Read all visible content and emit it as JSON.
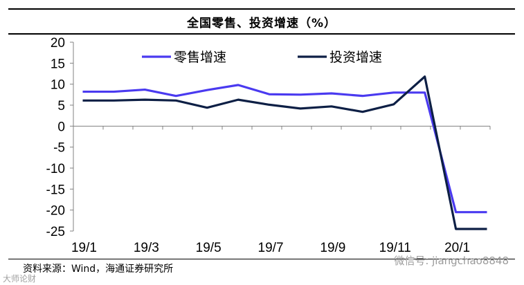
{
  "title": "全国零售、投资增速（%）",
  "source": "资料来源：Wind，海通证券研究所",
  "watermark": "微信号: jiangchao8848",
  "watermark_left": "大师论财",
  "colors": {
    "retail": "#4a3af0",
    "investment": "#0d1f45",
    "axis": "#808080"
  },
  "chart_data": {
    "type": "line",
    "title": "全国零售、投资增速（%）",
    "xlabel": "",
    "ylabel": "",
    "ylim": [
      -25,
      20
    ],
    "yticks": [
      20,
      15,
      10,
      5,
      0,
      -5,
      -10,
      -15,
      -20,
      -25
    ],
    "x": [
      "19/1",
      "19/2",
      "19/3",
      "19/4",
      "19/5",
      "19/6",
      "19/7",
      "19/8",
      "19/9",
      "19/10",
      "19/11",
      "19/12",
      "20/1",
      "20/2"
    ],
    "xtick_labels": [
      "19/1",
      "19/3",
      "19/5",
      "19/7",
      "19/9",
      "19/11",
      "20/1"
    ],
    "legend_position": "top",
    "grid": false,
    "series": [
      {
        "name": "零售增速",
        "color": "#4a3af0",
        "values": [
          8.2,
          8.2,
          8.7,
          7.2,
          8.6,
          9.8,
          7.6,
          7.5,
          7.8,
          7.2,
          8.0,
          8.0,
          -20.5,
          -20.5
        ]
      },
      {
        "name": "投资增速",
        "color": "#0d1f45",
        "values": [
          6.1,
          6.1,
          6.3,
          6.1,
          4.4,
          6.3,
          5.1,
          4.2,
          4.7,
          3.4,
          5.2,
          11.8,
          -24.5,
          -24.5
        ]
      }
    ]
  }
}
